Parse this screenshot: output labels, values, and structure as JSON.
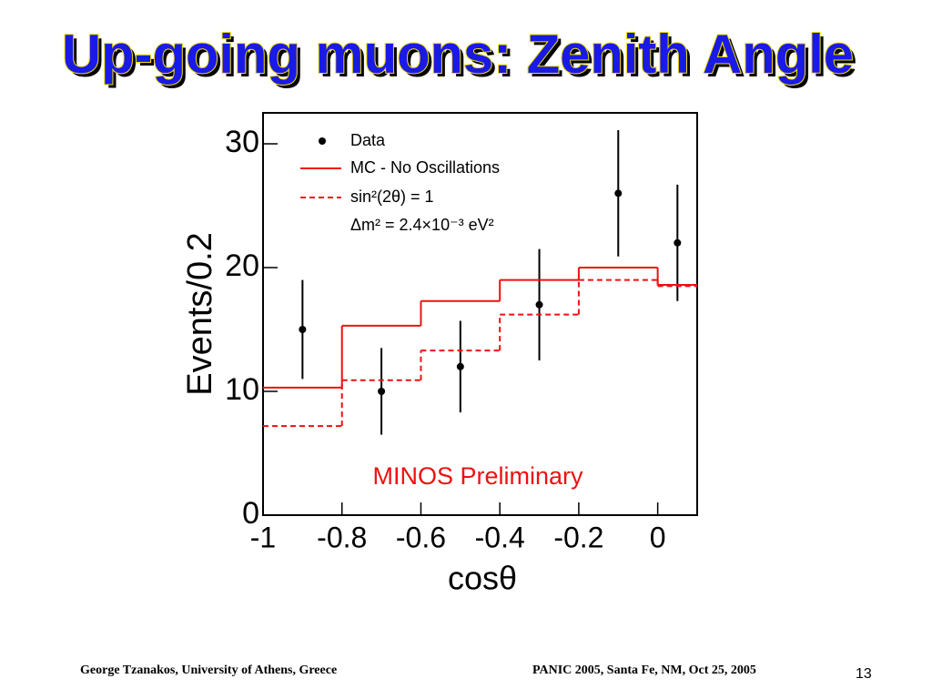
{
  "slide": {
    "title": "Up-going muons: Zenith Angle",
    "footer_left": "George Tzanakos, University of Athens, Greece",
    "footer_center": "PANIC 2005, Santa Fe, NM, Oct 25, 2005",
    "page_number": "13"
  },
  "chart_data": {
    "type": "step",
    "xlabel": "cosθ",
    "ylabel": "Events/0.2",
    "annotation": "MINOS Preliminary",
    "xlim": [
      -1,
      0.1
    ],
    "ylim": [
      0,
      32.5
    ],
    "xticks": [
      -1,
      -0.8,
      -0.6,
      -0.4,
      -0.2,
      0
    ],
    "yticks": [
      0,
      10,
      20,
      30
    ],
    "bins": [
      -1,
      -0.8,
      -0.6,
      -0.4,
      -0.2,
      0,
      0.1
    ],
    "x": [
      -0.9,
      -0.7,
      -0.5,
      -0.3,
      -0.1,
      0.05
    ],
    "legend_note": "Δm² = 2.4×10⁻³ eV²",
    "series": [
      {
        "name": "Data",
        "style": "points",
        "color": "#000000",
        "values": [
          15,
          10,
          12,
          17,
          26,
          22
        ],
        "errors": [
          4.0,
          3.5,
          3.7,
          4.5,
          5.1,
          4.7
        ]
      },
      {
        "name": "MC - No Oscillations",
        "style": "solid",
        "color": "#ee1111",
        "values": [
          10.3,
          15.3,
          17.3,
          19.0,
          20.0,
          18.6
        ]
      },
      {
        "name": "sin²(2θ) = 1",
        "style": "dashed",
        "color": "#ee1111",
        "values": [
          7.2,
          10.9,
          13.3,
          16.2,
          19.0,
          18.5
        ]
      }
    ]
  }
}
